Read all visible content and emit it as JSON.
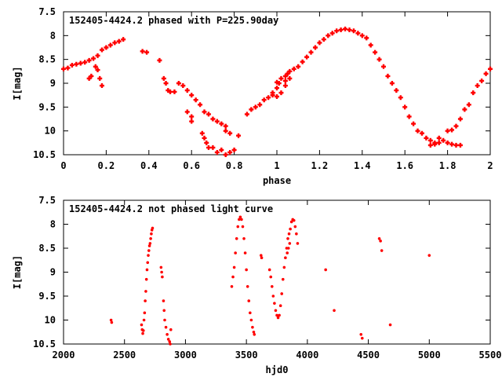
{
  "chart_data": [
    {
      "type": "scatter",
      "title": "152405-4424.2 phased with P=225.90day",
      "xlabel": "phase",
      "ylabel": "I[mag]",
      "xlim": [
        0,
        2
      ],
      "ylim": [
        10.5,
        7.5
      ],
      "y_inverted": true,
      "xticks": [
        0,
        0.2,
        0.4,
        0.6,
        0.8,
        1,
        1.2,
        1.4,
        1.6,
        1.8,
        2
      ],
      "xtick_labels": [
        "0",
        "0.2",
        "0.4",
        "0.6",
        "0.8",
        "1",
        "1.2",
        "1.4",
        "1.6",
        "1.8",
        "2"
      ],
      "yticks": [
        7.5,
        8,
        8.5,
        9,
        9.5,
        10,
        10.5
      ],
      "ytick_labels": [
        "7.5",
        "8",
        "8.5",
        "9",
        "9.5",
        "10",
        "10.5"
      ],
      "grid": false,
      "marker_color": "#ff0000",
      "marker": "plus",
      "points": [
        [
          0.0,
          8.7
        ],
        [
          0.02,
          8.68
        ],
        [
          0.04,
          8.62
        ],
        [
          0.06,
          8.6
        ],
        [
          0.08,
          8.58
        ],
        [
          0.1,
          8.56
        ],
        [
          0.12,
          8.52
        ],
        [
          0.14,
          8.48
        ],
        [
          0.16,
          8.42
        ],
        [
          0.18,
          8.3
        ],
        [
          0.2,
          8.25
        ],
        [
          0.22,
          8.2
        ],
        [
          0.24,
          8.15
        ],
        [
          0.26,
          8.12
        ],
        [
          0.28,
          8.08
        ],
        [
          0.12,
          8.9
        ],
        [
          0.13,
          8.85
        ],
        [
          0.15,
          8.65
        ],
        [
          0.16,
          8.72
        ],
        [
          0.17,
          8.9
        ],
        [
          0.18,
          9.05
        ],
        [
          0.37,
          8.33
        ],
        [
          0.39,
          8.35
        ],
        [
          0.45,
          8.52
        ],
        [
          0.47,
          8.9
        ],
        [
          0.48,
          9.0
        ],
        [
          0.49,
          9.15
        ],
        [
          0.5,
          9.18
        ],
        [
          0.52,
          9.18
        ],
        [
          0.54,
          9.0
        ],
        [
          0.56,
          9.05
        ],
        [
          0.58,
          9.15
        ],
        [
          0.6,
          9.25
        ],
        [
          0.62,
          9.35
        ],
        [
          0.64,
          9.45
        ],
        [
          0.66,
          9.6
        ],
        [
          0.68,
          9.65
        ],
        [
          0.7,
          9.75
        ],
        [
          0.72,
          9.8
        ],
        [
          0.74,
          9.85
        ],
        [
          0.76,
          9.9
        ],
        [
          0.58,
          9.6
        ],
        [
          0.6,
          9.7
        ],
        [
          0.6,
          9.8
        ],
        [
          0.65,
          10.05
        ],
        [
          0.66,
          10.15
        ],
        [
          0.67,
          10.25
        ],
        [
          0.68,
          10.35
        ],
        [
          0.7,
          10.35
        ],
        [
          0.72,
          10.45
        ],
        [
          0.74,
          10.4
        ],
        [
          0.76,
          10.5
        ],
        [
          0.78,
          10.45
        ],
        [
          0.8,
          10.4
        ],
        [
          0.76,
          10.0
        ],
        [
          0.78,
          10.05
        ],
        [
          0.82,
          10.1
        ],
        [
          0.86,
          9.65
        ],
        [
          0.88,
          9.55
        ],
        [
          0.9,
          9.5
        ],
        [
          0.92,
          9.45
        ],
        [
          0.94,
          9.35
        ],
        [
          0.96,
          9.3
        ],
        [
          0.98,
          9.2
        ],
        [
          1.0,
          9.1
        ],
        [
          1.01,
          9.0
        ],
        [
          1.0,
          8.98
        ],
        [
          1.02,
          8.9
        ],
        [
          1.04,
          8.85
        ],
        [
          1.05,
          8.8
        ],
        [
          1.04,
          8.95
        ],
        [
          1.06,
          8.75
        ],
        [
          1.08,
          8.7
        ],
        [
          1.1,
          8.65
        ],
        [
          1.12,
          8.55
        ],
        [
          1.14,
          8.45
        ],
        [
          1.16,
          8.35
        ],
        [
          1.18,
          8.25
        ],
        [
          1.2,
          8.15
        ],
        [
          1.22,
          8.08
        ],
        [
          1.24,
          8.0
        ],
        [
          1.26,
          7.95
        ],
        [
          1.28,
          7.9
        ],
        [
          1.3,
          7.88
        ],
        [
          1.32,
          7.86
        ],
        [
          1.34,
          7.88
        ],
        [
          1.36,
          7.9
        ],
        [
          1.38,
          7.95
        ],
        [
          1.4,
          8.0
        ],
        [
          1.42,
          8.05
        ],
        [
          1.44,
          8.2
        ],
        [
          1.46,
          8.35
        ],
        [
          1.48,
          8.5
        ],
        [
          1.5,
          8.65
        ],
        [
          1.52,
          8.85
        ],
        [
          1.54,
          9.0
        ],
        [
          1.56,
          9.15
        ],
        [
          1.58,
          9.3
        ],
        [
          1.6,
          9.5
        ],
        [
          1.62,
          9.7
        ],
        [
          1.64,
          9.85
        ],
        [
          1.66,
          10.0
        ],
        [
          1.04,
          9.05
        ],
        [
          1.06,
          8.9
        ],
        [
          1.02,
          9.2
        ],
        [
          0.98,
          9.25
        ],
        [
          1.0,
          9.28
        ],
        [
          1.68,
          10.05
        ],
        [
          1.7,
          10.15
        ],
        [
          1.72,
          10.2
        ],
        [
          1.74,
          10.25
        ],
        [
          1.76,
          10.25
        ],
        [
          1.78,
          10.2
        ],
        [
          1.8,
          10.25
        ],
        [
          1.82,
          10.28
        ],
        [
          1.84,
          10.3
        ],
        [
          1.86,
          10.3
        ],
        [
          1.72,
          10.3
        ],
        [
          1.74,
          10.28
        ],
        [
          1.76,
          10.15
        ],
        [
          1.8,
          10.0
        ],
        [
          1.82,
          9.98
        ],
        [
          1.84,
          9.9
        ],
        [
          1.86,
          9.75
        ],
        [
          1.88,
          9.55
        ],
        [
          1.9,
          9.45
        ],
        [
          1.92,
          9.2
        ],
        [
          1.94,
          9.05
        ],
        [
          1.96,
          8.95
        ],
        [
          1.98,
          8.8
        ],
        [
          2.0,
          8.7
        ]
      ]
    },
    {
      "type": "scatter",
      "title": "152405-4424.2 not phased light curve",
      "xlabel": "hjd0",
      "ylabel": "I[mag]",
      "xlim": [
        2000,
        5500
      ],
      "ylim": [
        10.5,
        7.5
      ],
      "y_inverted": true,
      "xticks": [
        2000,
        2500,
        3000,
        3500,
        4000,
        4500,
        5000,
        5500
      ],
      "xtick_labels": [
        "2000",
        "2500",
        "3000",
        "3500",
        "4000",
        "4500",
        "5000",
        "5500"
      ],
      "yticks": [
        7.5,
        8,
        8.5,
        9,
        9.5,
        10,
        10.5
      ],
      "ytick_labels": [
        "7.5",
        "8",
        "8.5",
        "9",
        "9.5",
        "10",
        "10.5"
      ],
      "grid": false,
      "marker_color": "#ff0000",
      "marker": "dot",
      "points": [
        [
          2390,
          10.0
        ],
        [
          2395,
          10.05
        ],
        [
          2640,
          10.1
        ],
        [
          2645,
          10.2
        ],
        [
          2650,
          10.28
        ],
        [
          2655,
          10.22
        ],
        [
          2660,
          10.0
        ],
        [
          2665,
          9.85
        ],
        [
          2670,
          9.6
        ],
        [
          2675,
          9.4
        ],
        [
          2680,
          9.15
        ],
        [
          2685,
          8.95
        ],
        [
          2690,
          8.8
        ],
        [
          2695,
          8.65
        ],
        [
          2700,
          8.55
        ],
        [
          2705,
          8.45
        ],
        [
          2710,
          8.4
        ],
        [
          2715,
          8.3
        ],
        [
          2720,
          8.2
        ],
        [
          2725,
          8.12
        ],
        [
          2730,
          8.08
        ],
        [
          2800,
          8.9
        ],
        [
          2805,
          9.0
        ],
        [
          2810,
          9.1
        ],
        [
          2820,
          9.6
        ],
        [
          2825,
          9.8
        ],
        [
          2830,
          10.0
        ],
        [
          2840,
          10.15
        ],
        [
          2850,
          10.3
        ],
        [
          2860,
          10.4
        ],
        [
          2870,
          10.45
        ],
        [
          2880,
          10.2
        ],
        [
          2875,
          10.5
        ],
        [
          3380,
          9.3
        ],
        [
          3390,
          9.1
        ],
        [
          3400,
          8.9
        ],
        [
          3410,
          8.6
        ],
        [
          3420,
          8.3
        ],
        [
          3430,
          8.05
        ],
        [
          3440,
          7.9
        ],
        [
          3450,
          7.85
        ],
        [
          3460,
          7.9
        ],
        [
          3470,
          8.05
        ],
        [
          3480,
          8.3
        ],
        [
          3490,
          8.6
        ],
        [
          3500,
          8.95
        ],
        [
          3510,
          9.3
        ],
        [
          3520,
          9.6
        ],
        [
          3530,
          9.85
        ],
        [
          3540,
          10.0
        ],
        [
          3550,
          10.15
        ],
        [
          3560,
          10.25
        ],
        [
          3565,
          10.3
        ],
        [
          3620,
          8.65
        ],
        [
          3625,
          8.7
        ],
        [
          3690,
          8.95
        ],
        [
          3700,
          9.1
        ],
        [
          3710,
          9.3
        ],
        [
          3720,
          9.5
        ],
        [
          3730,
          9.65
        ],
        [
          3740,
          9.8
        ],
        [
          3750,
          9.9
        ],
        [
          3760,
          9.95
        ],
        [
          3770,
          9.9
        ],
        [
          3780,
          9.7
        ],
        [
          3790,
          9.45
        ],
        [
          3800,
          9.15
        ],
        [
          3810,
          8.9
        ],
        [
          3820,
          8.7
        ],
        [
          3830,
          8.5
        ],
        [
          3840,
          8.3
        ],
        [
          3850,
          8.2
        ],
        [
          3860,
          8.1
        ],
        [
          3870,
          7.95
        ],
        [
          3880,
          7.9
        ],
        [
          3890,
          7.92
        ],
        [
          3900,
          8.05
        ],
        [
          3910,
          8.2
        ],
        [
          3920,
          8.4
        ],
        [
          3835,
          8.6
        ],
        [
          3845,
          8.5
        ],
        [
          3855,
          8.4
        ],
        [
          4150,
          8.95
        ],
        [
          4220,
          9.8
        ],
        [
          4440,
          10.3
        ],
        [
          4450,
          10.38
        ],
        [
          4590,
          8.3
        ],
        [
          4600,
          8.35
        ],
        [
          4610,
          8.55
        ],
        [
          4680,
          10.1
        ],
        [
          5000,
          8.65
        ]
      ]
    }
  ]
}
